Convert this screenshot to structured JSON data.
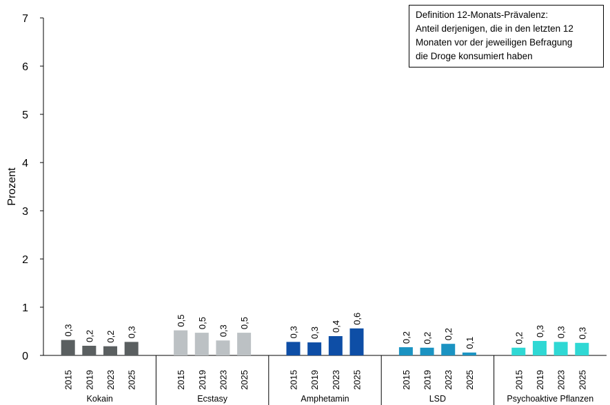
{
  "chart_data": {
    "type": "bar",
    "ylabel": "Prozent",
    "ylim": [
      0,
      7
    ],
    "yticks": [
      "0",
      "1",
      "2",
      "3",
      "4",
      "5",
      "6",
      "7"
    ],
    "grid": false,
    "years": [
      "2015",
      "2019",
      "2023",
      "2025"
    ],
    "groups": [
      {
        "name": "Kokain",
        "color": "#5a5f60",
        "values": [
          0.32,
          0.2,
          0.19,
          0.28
        ],
        "labels": [
          "0,3",
          "0,2",
          "0,2",
          "0,3"
        ]
      },
      {
        "name": "Ecstasy",
        "color": "#bcc1c4",
        "values": [
          0.52,
          0.47,
          0.31,
          0.47
        ],
        "labels": [
          "0,5",
          "0,5",
          "0,3",
          "0,5"
        ]
      },
      {
        "name": "Amphetamin",
        "color": "#0e4ea6",
        "values": [
          0.28,
          0.27,
          0.4,
          0.56
        ],
        "labels": [
          "0,3",
          "0,3",
          "0,4",
          "0,6"
        ]
      },
      {
        "name": "LSD",
        "color": "#1b93c2",
        "values": [
          0.17,
          0.16,
          0.24,
          0.06
        ],
        "labels": [
          "0,2",
          "0,2",
          "0,2",
          "0,1"
        ]
      },
      {
        "name": "Psychoaktive Pflanzen",
        "color": "#2fd8d4",
        "values": [
          0.16,
          0.3,
          0.28,
          0.26
        ],
        "labels": [
          "0,2",
          "0,3",
          "0,3",
          "0,3"
        ]
      }
    ],
    "annotation": [
      "Definition 12-Monats-Prävalenz:",
      "Anteil derjenigen, die in den letzten 12",
      "Monaten vor der jeweiligen Befragung",
      "die Droge konsumiert haben"
    ]
  }
}
